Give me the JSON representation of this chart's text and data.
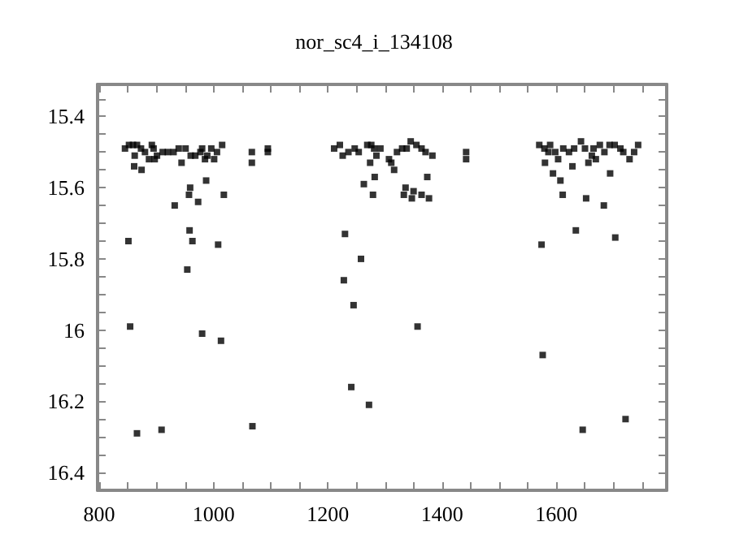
{
  "chart_data": {
    "type": "scatter",
    "title": "nor_sc4_i_134108",
    "x": [
      851,
      854,
      866,
      909,
      1068,
      932,
      958,
      963,
      954,
      980,
      1013,
      1008,
      957,
      959,
      973,
      987,
      1018,
      1067,
      1067,
      1095,
      1095,
      861,
      874,
      845,
      852,
      859,
      866,
      873,
      880,
      892,
      887,
      897,
      901,
      911,
      920,
      930,
      939,
      944,
      951,
      960,
      977,
      980,
      989,
      996,
      1001,
      1006,
      1015,
      862,
      895,
      968,
      985,
      1230,
      1258,
      1228,
      1245,
      1357,
      1241,
      1272,
      1263,
      1282,
      1279,
      1316,
      1336,
      1333,
      1350,
      1347,
      1364,
      1377,
      1374,
      1442,
      1442,
      1211,
      1221,
      1226,
      1236,
      1247,
      1254,
      1269,
      1276,
      1281,
      1285,
      1292,
      1274,
      1307,
      1311,
      1321,
      1330,
      1338,
      1345,
      1355,
      1364,
      1371,
      1383,
      1574,
      1576,
      1646,
      1721,
      1634,
      1703,
      1611,
      1652,
      1683,
      1607,
      1594,
      1580,
      1628,
      1694,
      1728,
      1570,
      1579,
      1586,
      1589,
      1598,
      1603,
      1612,
      1622,
      1631,
      1643,
      1650,
      1656,
      1662,
      1665,
      1669,
      1676,
      1684,
      1693,
      1702,
      1712,
      1717,
      1736,
      1743
    ],
    "values": [
      15.75,
      15.99,
      16.29,
      16.28,
      16.27,
      15.65,
      15.72,
      15.75,
      15.83,
      16.01,
      16.03,
      15.76,
      15.62,
      15.6,
      15.64,
      15.58,
      15.62,
      15.53,
      15.5,
      15.49,
      15.5,
      15.54,
      15.55,
      15.49,
      15.48,
      15.48,
      15.48,
      15.49,
      15.5,
      15.48,
      15.52,
      15.52,
      15.51,
      15.5,
      15.5,
      15.5,
      15.49,
      15.53,
      15.49,
      15.51,
      15.5,
      15.49,
      15.51,
      15.49,
      15.52,
      15.5,
      15.48,
      15.51,
      15.49,
      15.51,
      15.52,
      15.73,
      15.8,
      15.86,
      15.93,
      15.99,
      16.16,
      16.21,
      15.59,
      15.57,
      15.62,
      15.55,
      15.6,
      15.62,
      15.61,
      15.63,
      15.62,
      15.63,
      15.57,
      15.5,
      15.52,
      15.49,
      15.48,
      15.51,
      15.5,
      15.49,
      15.5,
      15.48,
      15.48,
      15.49,
      15.51,
      15.49,
      15.53,
      15.52,
      15.53,
      15.5,
      15.49,
      15.49,
      15.47,
      15.48,
      15.49,
      15.5,
      15.51,
      15.76,
      16.07,
      16.28,
      16.25,
      15.72,
      15.74,
      15.62,
      15.63,
      15.65,
      15.58,
      15.56,
      15.53,
      15.54,
      15.56,
      15.52,
      15.48,
      15.49,
      15.5,
      15.48,
      15.5,
      15.52,
      15.49,
      15.5,
      15.49,
      15.47,
      15.49,
      15.53,
      15.51,
      15.49,
      15.52,
      15.48,
      15.5,
      15.48,
      15.48,
      15.49,
      15.5,
      15.5,
      15.48
    ],
    "color": "#000000",
    "marker": "square",
    "grid": false,
    "xlim": [
      797,
      1793
    ],
    "xticks": [
      800,
      {
        "value": 850,
        "label": null
      },
      {
        "value": 900,
        "label": null
      },
      {
        "value": 950,
        "label": null
      },
      1000,
      {
        "value": 1050,
        "label": null
      },
      {
        "value": 1100,
        "label": null
      },
      {
        "value": 1150,
        "label": null
      },
      1200,
      {
        "value": 1250,
        "label": null
      },
      {
        "value": 1300,
        "label": null
      },
      {
        "value": 1350,
        "label": null
      },
      1400,
      {
        "value": 1450,
        "label": null
      },
      {
        "value": 1500,
        "label": null
      },
      {
        "value": 1550,
        "label": null
      },
      1600,
      {
        "value": 1650,
        "label": null
      },
      {
        "value": 1700,
        "label": null
      },
      {
        "value": 1750,
        "label": null
      }
    ],
    "ylim": [
      16.45,
      15.31
    ],
    "yticks": [
      {
        "value": 15.35,
        "label": null
      },
      15.4,
      {
        "value": 15.45,
        "label": null
      },
      {
        "value": 15.5,
        "label": null
      },
      {
        "value": 15.55,
        "label": null
      },
      15.6,
      {
        "value": 15.65,
        "label": null
      },
      {
        "value": 15.7,
        "label": null
      },
      {
        "value": 15.75,
        "label": null
      },
      15.8,
      {
        "value": 15.85,
        "label": null
      },
      {
        "value": 15.9,
        "label": null
      },
      {
        "value": 15.95,
        "label": null
      },
      16,
      {
        "value": 16.05,
        "label": null
      },
      {
        "value": 16.1,
        "label": null
      },
      {
        "value": 16.15,
        "label": null
      },
      16.2,
      {
        "value": 16.25,
        "label": null
      },
      {
        "value": 16.3,
        "label": null
      },
      {
        "value": 16.35,
        "label": null
      },
      16.4
    ]
  }
}
